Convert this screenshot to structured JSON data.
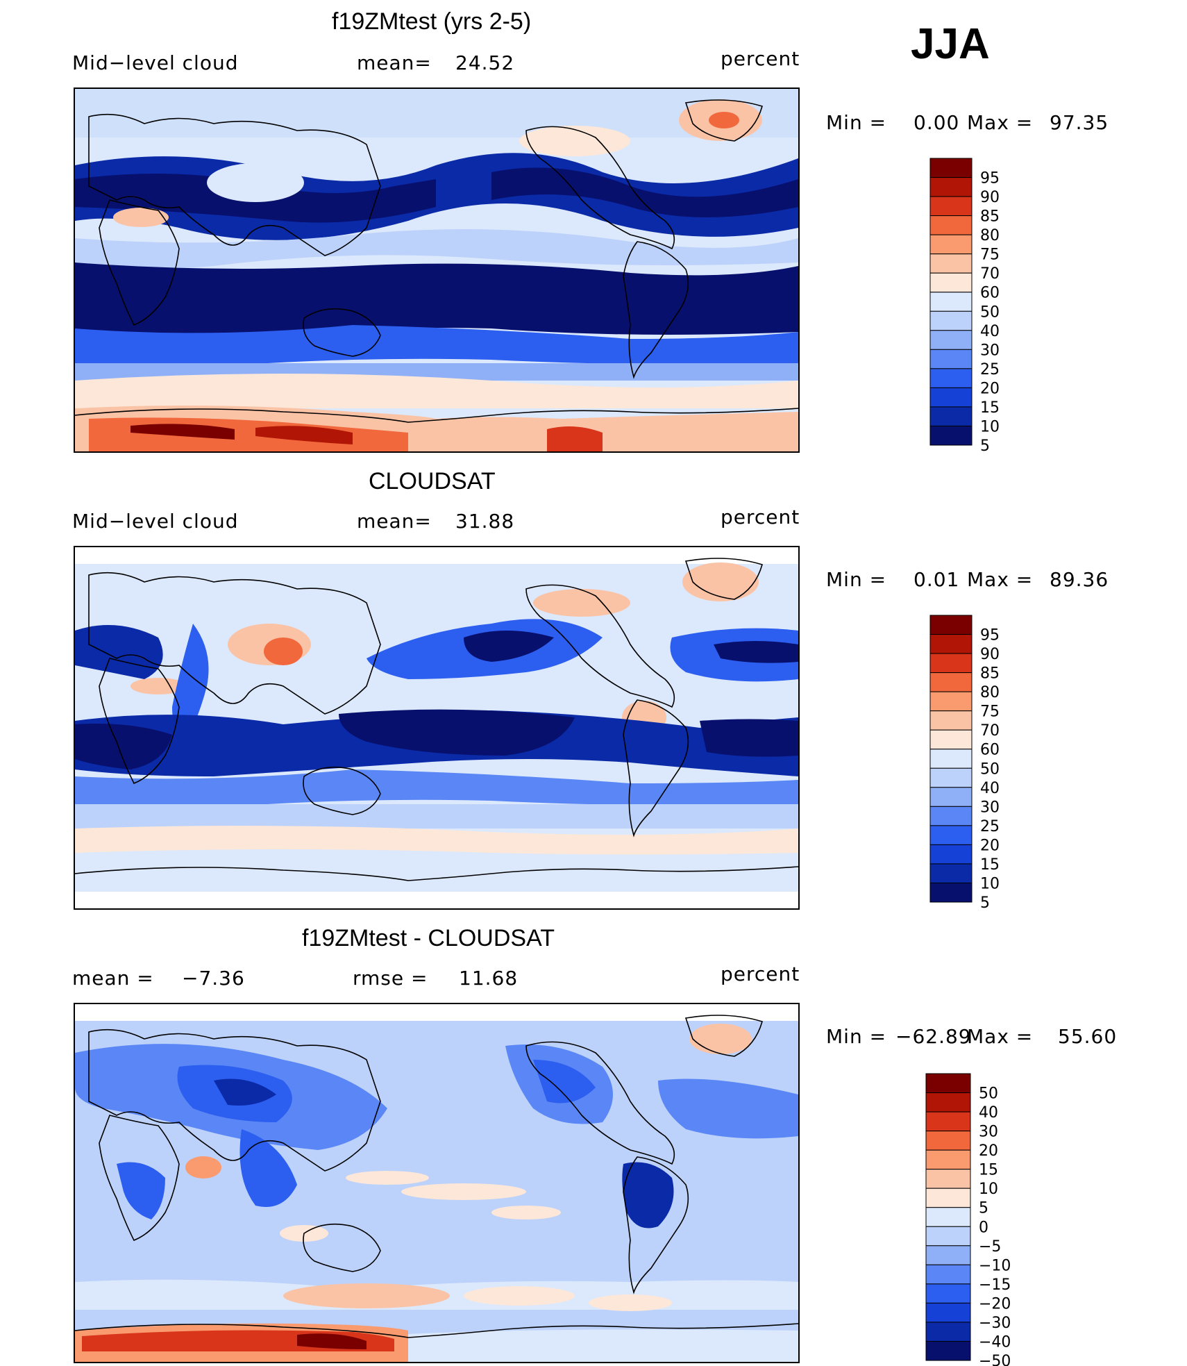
{
  "season": "JJA",
  "colors": {
    "levels13": [
      "#08106e",
      "#0a2aa8",
      "#1541d6",
      "#2c5ef0",
      "#5a87f5",
      "#8fb0f7",
      "#bcd2fb",
      "#dce8fb",
      "#fde7d8",
      "#fbc3a6",
      "#f99a6f",
      "#f2683d",
      "#d8351a",
      "#b01505",
      "#7a0000"
    ],
    "diff13": [
      "#08106e",
      "#0a2aa8",
      "#1541d6",
      "#2c5ef0",
      "#5a87f5",
      "#8fb0f7",
      "#bcd2fb",
      "#dce8fb",
      "#fde7d8",
      "#fbc3a6",
      "#f99a6f",
      "#f2683d",
      "#d8351a",
      "#b01505",
      "#7a0000"
    ]
  },
  "chart_data": [
    {
      "type": "heatmap",
      "title": "f19ZMtest (yrs 2-5)",
      "left_label": "Mid−level cloud",
      "stat_label": "mean=",
      "stat_value": "24.52",
      "units": "percent",
      "min_label": "Min =",
      "min_value": "0.00",
      "max_label": "Max =",
      "max_value": "97.35",
      "contour_levels": [
        "95",
        "90",
        "85",
        "80",
        "75",
        "70",
        "60",
        "50",
        "40",
        "30",
        "25",
        "20",
        "15",
        "10",
        "5"
      ]
    },
    {
      "type": "heatmap",
      "title": "CLOUDSAT",
      "left_label": "Mid−level cloud",
      "stat_label": "mean=",
      "stat_value": "31.88",
      "units": "percent",
      "min_label": "Min =",
      "min_value": "0.01",
      "max_label": "Max =",
      "max_value": "89.36",
      "contour_levels": [
        "95",
        "90",
        "85",
        "80",
        "75",
        "70",
        "60",
        "50",
        "40",
        "30",
        "25",
        "20",
        "15",
        "10",
        "5"
      ]
    },
    {
      "type": "heatmap",
      "title": "f19ZMtest - CLOUDSAT",
      "left_label": "mean =",
      "left_value": "−7.36",
      "stat_label": "rmse =",
      "stat_value": "11.68",
      "units": "percent",
      "min_label": "Min =",
      "min_value": "−62.89",
      "max_label": "Max =",
      "max_value": "55.60",
      "contour_levels": [
        "50",
        "40",
        "30",
        "20",
        "15",
        "10",
        "5",
        "0",
        "−5",
        "−10",
        "−15",
        "−20",
        "−30",
        "−40",
        "−50"
      ]
    }
  ]
}
